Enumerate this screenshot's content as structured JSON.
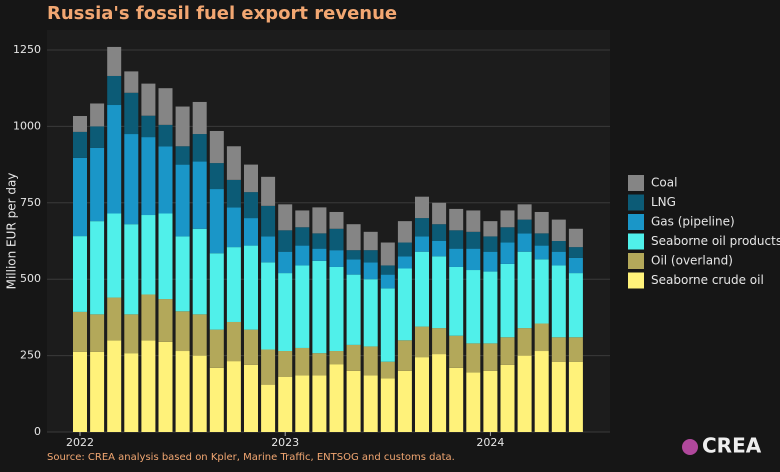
{
  "chart_data": {
    "type": "stacked_bar",
    "title": "Russia's fossil fuel export revenue",
    "y_label": "Million EUR per day",
    "source": "Source: CREA analysis based on Kpler, Marine Traffic, ENTSOG and customs data.",
    "brand": "CREA",
    "categories": [
      "2022",
      null,
      null,
      null,
      null,
      null,
      null,
      null,
      null,
      null,
      null,
      null,
      "2023",
      null,
      null,
      null,
      null,
      null,
      null,
      null,
      null,
      null,
      null,
      null,
      "2024",
      null,
      null,
      null,
      null,
      null
    ],
    "series": [
      {
        "name": "Seaborne crude oil",
        "color": "#fff27a",
        "values": [
          262,
          262,
          300,
          258,
          300,
          295,
          265,
          250,
          210,
          232,
          220,
          155,
          180,
          185,
          185,
          222,
          200,
          185,
          175,
          200,
          245,
          255,
          210,
          195,
          200,
          220,
          250,
          265,
          230,
          230
        ]
      },
      {
        "name": "Oil (overland)",
        "color": "#b3a85a",
        "values": [
          131,
          123,
          140,
          127,
          150,
          140,
          130,
          135,
          125,
          128,
          115,
          115,
          85,
          90,
          73,
          43,
          85,
          95,
          55,
          100,
          100,
          85,
          105,
          95,
          90,
          90,
          90,
          90,
          80,
          80
        ]
      },
      {
        "name": "Seaborne oil products",
        "color": "#50f0ea",
        "values": [
          248,
          305,
          275,
          295,
          260,
          280,
          245,
          280,
          250,
          245,
          275,
          285,
          255,
          270,
          302,
          275,
          230,
          220,
          240,
          235,
          245,
          235,
          225,
          240,
          235,
          240,
          250,
          210,
          235,
          210
        ]
      },
      {
        "name": "Gas (pipeline)",
        "color": "#1a96c8",
        "values": [
          256,
          240,
          355,
          295,
          255,
          220,
          235,
          220,
          210,
          130,
          90,
          85,
          70,
          65,
          40,
          55,
          50,
          55,
          45,
          40,
          50,
          50,
          60,
          70,
          65,
          70,
          60,
          45,
          45,
          50
        ]
      },
      {
        "name": "LNG",
        "color": "#0c5b76",
        "values": [
          85,
          70,
          95,
          135,
          70,
          70,
          60,
          90,
          85,
          90,
          85,
          100,
          70,
          60,
          50,
          70,
          30,
          40,
          30,
          45,
          60,
          55,
          60,
          55,
          50,
          50,
          45,
          40,
          35,
          35
        ]
      },
      {
        "name": "Coal",
        "color": "#858585",
        "values": [
          52,
          75,
          95,
          70,
          105,
          120,
          130,
          105,
          105,
          110,
          90,
          95,
          85,
          55,
          85,
          55,
          85,
          60,
          75,
          70,
          70,
          70,
          70,
          70,
          50,
          55,
          50,
          70,
          70,
          60
        ]
      }
    ],
    "ylim": [
      0,
      1250
    ],
    "yticks": [
      0,
      250,
      500,
      750,
      1000,
      1250
    ],
    "grid": true
  }
}
